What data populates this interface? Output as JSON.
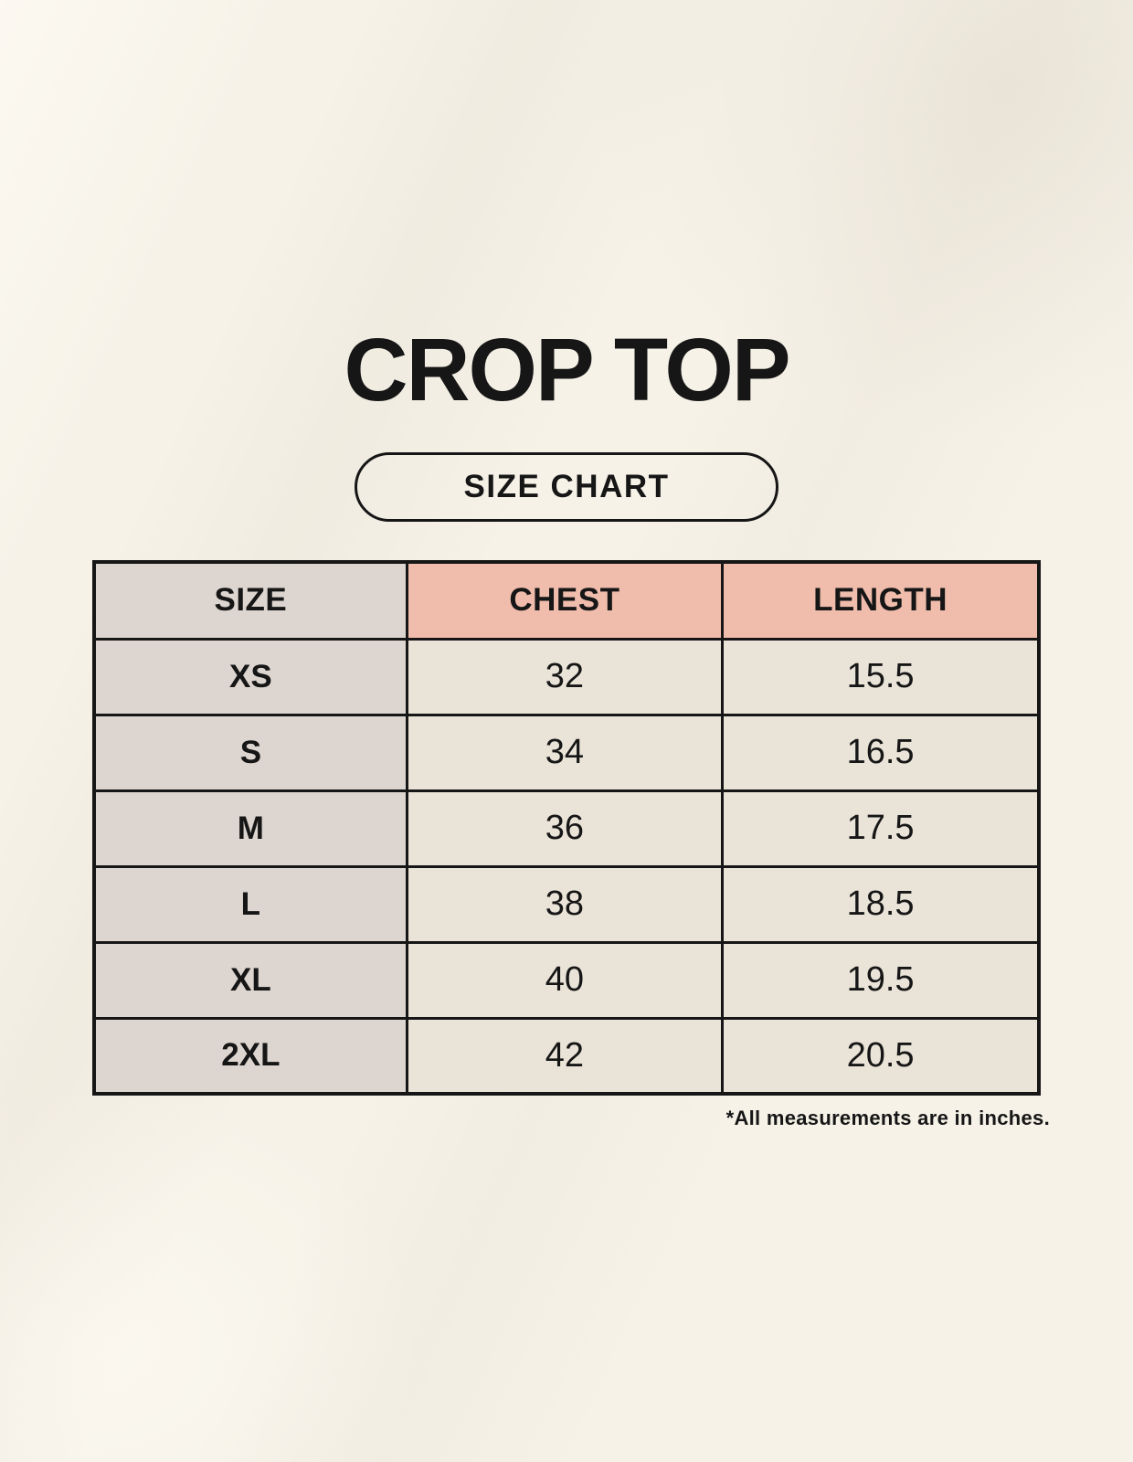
{
  "header": {
    "title": "CROP TOP",
    "badge_label": "SIZE CHART"
  },
  "chart_data": {
    "type": "table",
    "title": "CROP TOP",
    "columns": [
      "SIZE",
      "CHEST",
      "LENGTH"
    ],
    "rows": [
      [
        "XS",
        "32",
        "15.5"
      ],
      [
        "S",
        "34",
        "16.5"
      ],
      [
        "M",
        "36",
        "17.5"
      ],
      [
        "L",
        "38",
        "18.5"
      ],
      [
        "XL",
        "40",
        "19.5"
      ],
      [
        "2XL",
        "42",
        "20.5"
      ]
    ],
    "units_note": "*All measurements are in inches."
  },
  "colors": {
    "background": "#f6f2e8",
    "header_pink": "#f0bcab",
    "column_gray": "#ddd5cf",
    "cell_cream": "#eae3d8",
    "border_ink": "#161616"
  }
}
